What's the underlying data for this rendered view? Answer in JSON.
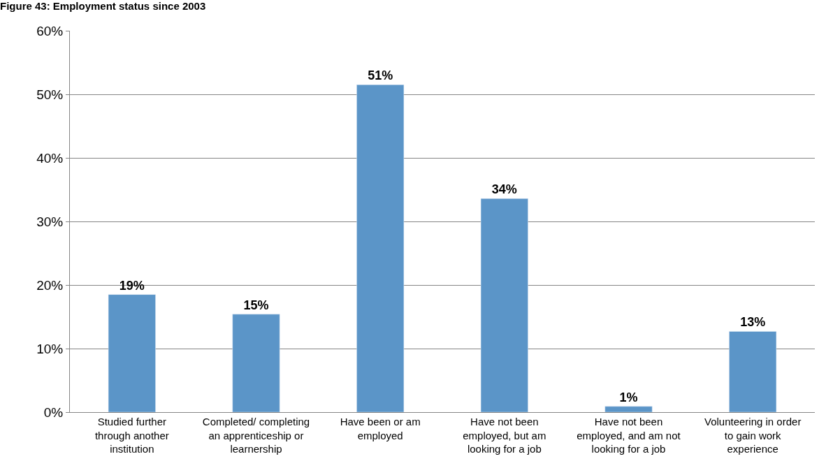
{
  "chart_data": {
    "type": "bar",
    "title": "Figure 43: Employment status since 2003",
    "categories": [
      "Studied further through another institution",
      "Completed/ completing an apprenticeship or learnership",
      "Have been or am employed",
      "Have not been employed, but am looking for a job",
      "Have not been employed, and am not looking for a job",
      "Volunteering in order to gain work experience"
    ],
    "values": [
      0.185,
      0.154,
      0.515,
      0.336,
      0.009,
      0.127
    ],
    "value_labels": [
      "19%",
      "15%",
      "51%",
      "34%",
      "1%",
      "13%"
    ],
    "color": "#5b95c8",
    "ylim": [
      0,
      0.6
    ],
    "yticks": [
      {
        "value": 0,
        "label": "0%"
      },
      {
        "value": 0.1,
        "label": "10%"
      },
      {
        "value": 0.2,
        "label": "20%"
      },
      {
        "value": 0.3,
        "label": "30%"
      },
      {
        "value": 0.4,
        "label": "40%"
      },
      {
        "value": 0.5,
        "label": "50%"
      },
      {
        "value": 0.6,
        "label": "60%"
      }
    ],
    "grid": "y"
  }
}
